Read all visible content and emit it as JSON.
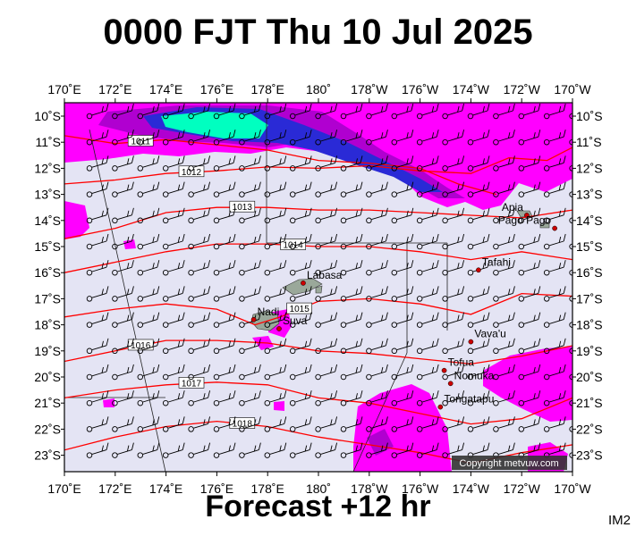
{
  "title": "0000 FJT Thu 10 Jul 2025",
  "subtitle": "Forecast +12 hr",
  "corner_label": "IM2",
  "copyright": "Copyright metvuw.com",
  "colors": {
    "ocean_background": "#e4e4f4",
    "land": "#9aa89a",
    "isobar": "#ff0000",
    "place_marker": "#cc0000",
    "rain_light": "#ff00ff",
    "rain_moderate": "#b000d0",
    "rain_heavy": "#2a2ad6",
    "rain_very_heavy": "#00ffc0",
    "copyright_box": "#333333"
  },
  "map": {
    "lon_labels": [
      "170˚E",
      "172˚E",
      "174˚E",
      "176˚E",
      "178˚E",
      "180˚",
      "178˚W",
      "176˚W",
      "174˚W",
      "172˚W",
      "170˚W"
    ],
    "lat_labels": [
      "10˚S",
      "11˚S",
      "12˚S",
      "13˚S",
      "14˚S",
      "15˚S",
      "16˚S",
      "17˚S",
      "18˚S",
      "19˚S",
      "20˚S",
      "21˚S",
      "22˚S",
      "23˚S"
    ],
    "places": [
      {
        "name": "Apia",
        "lon": -171.8,
        "lat": -13.8
      },
      {
        "name": "Pago Pago",
        "lon": -170.7,
        "lat": -14.3
      },
      {
        "name": "Tafahi",
        "lon": -173.7,
        "lat": -15.9
      },
      {
        "name": "Labasa",
        "lon": 179.4,
        "lat": -16.4
      },
      {
        "name": "Nadi",
        "lon": 177.45,
        "lat": -17.8
      },
      {
        "name": "Suva",
        "lon": 178.45,
        "lat": -18.15
      },
      {
        "name": "Vava'u",
        "lon": -174.0,
        "lat": -18.65
      },
      {
        "name": "Tofua",
        "lon": -175.05,
        "lat": -19.75
      },
      {
        "name": "Nomuka",
        "lon": -174.8,
        "lat": -20.25
      },
      {
        "name": "Tongatapu",
        "lon": -175.2,
        "lat": -21.15
      }
    ],
    "isobars": [
      {
        "label": "1011",
        "points": [
          [
            170,
            -10.75
          ],
          [
            172,
            -11.05
          ],
          [
            174,
            -10.9
          ],
          [
            176,
            -11.1
          ],
          [
            178,
            -11.3
          ],
          [
            180,
            -11.7
          ],
          [
            -178,
            -11.8
          ],
          [
            -176,
            -12.0
          ],
          [
            -174.5,
            -12.6
          ],
          [
            -173,
            -13.0
          ]
        ]
      },
      {
        "label": "1012",
        "points": [
          [
            170,
            -12.6
          ],
          [
            172,
            -12.45
          ],
          [
            174,
            -12.2
          ],
          [
            176,
            -12.1
          ],
          [
            178,
            -11.95
          ],
          [
            180,
            -12.0
          ],
          [
            -178,
            -11.9
          ],
          [
            -176,
            -12.1
          ],
          [
            -174,
            -12.2
          ],
          [
            -172.5,
            -11.6
          ],
          [
            -171,
            -11.7
          ],
          [
            -170,
            -11.2
          ]
        ]
      },
      {
        "label": "1013",
        "points": [
          [
            170,
            -14.7
          ],
          [
            172,
            -14.3
          ],
          [
            174,
            -13.7
          ],
          [
            176,
            -13.5
          ],
          [
            178,
            -13.5
          ],
          [
            180,
            -13.6
          ],
          [
            -178,
            -13.6
          ],
          [
            -176,
            -13.7
          ],
          [
            -174,
            -13.8
          ],
          [
            -172,
            -13.9
          ],
          [
            -170,
            -13.6
          ]
        ]
      },
      {
        "label": "1014",
        "points": [
          [
            170,
            -16.0
          ],
          [
            172,
            -15.6
          ],
          [
            174,
            -15.2
          ],
          [
            176,
            -14.9
          ],
          [
            178,
            -14.9
          ],
          [
            180,
            -15.0
          ],
          [
            -178,
            -15.0
          ],
          [
            -176,
            -15.2
          ],
          [
            -174,
            -15.5
          ],
          [
            -172,
            -15.2
          ],
          [
            -170,
            -15.5
          ]
        ]
      },
      {
        "label": "1015",
        "points": [
          [
            170,
            -17.7
          ],
          [
            172,
            -17.4
          ],
          [
            174,
            -17.2
          ],
          [
            176,
            -17.4
          ],
          [
            177.5,
            -18.0
          ],
          [
            178.5,
            -17.7
          ],
          [
            180,
            -17.1
          ],
          [
            -178,
            -17.0
          ],
          [
            -176,
            -17.2
          ],
          [
            -174,
            -17.6
          ],
          [
            -172,
            -16.8
          ],
          [
            -170,
            -16.9
          ]
        ]
      },
      {
        "label": "1016",
        "points": [
          [
            170,
            -19.4
          ],
          [
            172,
            -19.0
          ],
          [
            174,
            -18.6
          ],
          [
            176,
            -18.6
          ],
          [
            178,
            -18.7
          ],
          [
            180,
            -19.0
          ],
          [
            -178,
            -19.1
          ],
          [
            -176,
            -19.3
          ],
          [
            -174,
            -19.5
          ],
          [
            -172,
            -19.2
          ],
          [
            -170,
            -18.8
          ]
        ]
      },
      {
        "label": "1017",
        "points": [
          [
            170,
            -20.8
          ],
          [
            172,
            -20.5
          ],
          [
            174,
            -20.3
          ],
          [
            176,
            -20.2
          ],
          [
            178,
            -20.3
          ],
          [
            180,
            -20.8
          ],
          [
            -178,
            -21.0
          ],
          [
            -176,
            -21.4
          ],
          [
            -174,
            -21.8
          ],
          [
            -172,
            -21.6
          ],
          [
            -170,
            -20.8
          ]
        ]
      },
      {
        "label": "1018",
        "points": [
          [
            170,
            -22.8
          ],
          [
            172,
            -22.3
          ],
          [
            174,
            -21.9
          ],
          [
            176,
            -21.7
          ],
          [
            178,
            -21.9
          ],
          [
            180,
            -22.3
          ],
          [
            -178,
            -22.6
          ],
          [
            -176,
            -22.9
          ],
          [
            -174,
            -23.3
          ],
          [
            -172,
            -22.9
          ],
          [
            -170,
            -22.6
          ]
        ]
      }
    ]
  }
}
